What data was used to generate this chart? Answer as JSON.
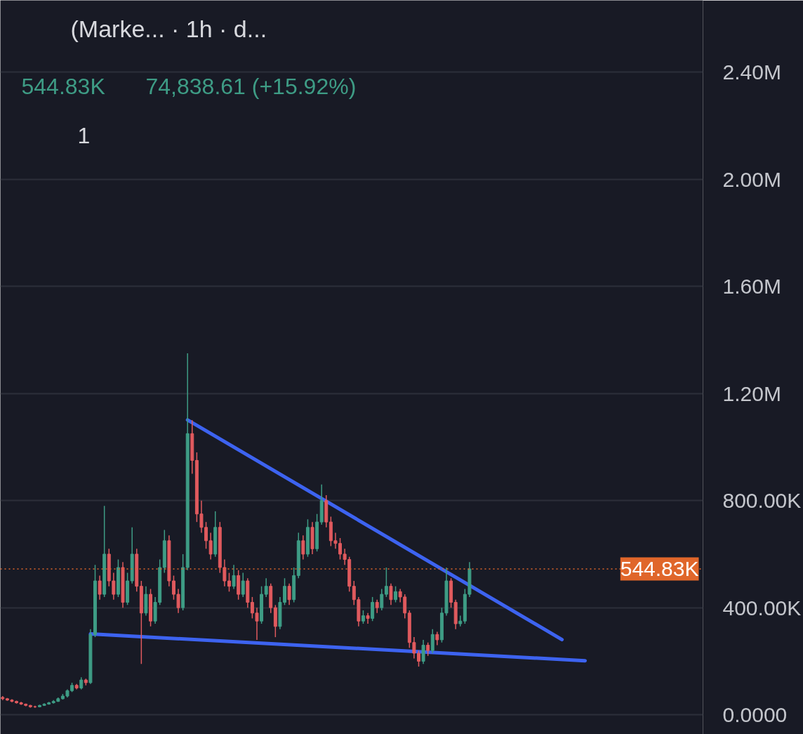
{
  "chart_data": {
    "type": "candlestick",
    "title": "(Marke... · 1h · d...",
    "annotations": [
      "544.83K",
      "74,838.61 (+15.92%)",
      "1"
    ],
    "categories": [
      null,
      null,
      null,
      null,
      null,
      null,
      null,
      null,
      null,
      null,
      null,
      null,
      null,
      null,
      null,
      null,
      null,
      null,
      null,
      null,
      null,
      null,
      null,
      null,
      null,
      null,
      null,
      null,
      null,
      null,
      null,
      null,
      null,
      null,
      null,
      null,
      null,
      null,
      null,
      null,
      null,
      null,
      null,
      null,
      null,
      null,
      null,
      null,
      null,
      null,
      null,
      null,
      null,
      null,
      null,
      null,
      null,
      null,
      null,
      null,
      null,
      null,
      null,
      null,
      null,
      null,
      null,
      null,
      null,
      null,
      null,
      null,
      null,
      null,
      null,
      null,
      null,
      null,
      null,
      null,
      null,
      null,
      null,
      null,
      null,
      null,
      null,
      null,
      null,
      null,
      null,
      null,
      null,
      null,
      null,
      null,
      null,
      null,
      null,
      null,
      null,
      null,
      null,
      null,
      null,
      null,
      null,
      null,
      null,
      null,
      null,
      null,
      null,
      null,
      null,
      null,
      null,
      null,
      null,
      null,
      null,
      null,
      null,
      null,
      null,
      null,
      null,
      null,
      null,
      null,
      null,
      null,
      null,
      null,
      null,
      null,
      null,
      null,
      null,
      null,
      null,
      null,
      null,
      null,
      null,
      null,
      null,
      null,
      null,
      null,
      null,
      null
    ],
    "ohlc": [
      [
        65000,
        70000,
        55000,
        60000
      ],
      [
        60000,
        63000,
        52000,
        55000
      ],
      [
        55000,
        58000,
        47000,
        50000
      ],
      [
        50000,
        53000,
        42000,
        45000
      ],
      [
        45000,
        48000,
        37000,
        40000
      ],
      [
        40000,
        42000,
        32000,
        35000
      ],
      [
        35000,
        37000,
        27000,
        30000
      ],
      [
        30000,
        34000,
        26000,
        30000
      ],
      [
        30000,
        38000,
        28000,
        35000
      ],
      [
        35000,
        43000,
        33000,
        40000
      ],
      [
        40000,
        48000,
        38000,
        45000
      ],
      [
        45000,
        55000,
        42000,
        50000
      ],
      [
        50000,
        65000,
        48000,
        60000
      ],
      [
        60000,
        78000,
        57000,
        70000
      ],
      [
        70000,
        95000,
        65000,
        90000
      ],
      [
        90000,
        120000,
        85000,
        110000
      ],
      [
        110000,
        115000,
        95000,
        100000
      ],
      [
        100000,
        140000,
        95000,
        130000
      ],
      [
        130000,
        135000,
        110000,
        120000
      ],
      [
        120000,
        320000,
        115000,
        300000
      ],
      [
        300000,
        560000,
        290000,
        500000
      ],
      [
        500000,
        520000,
        430000,
        450000
      ],
      [
        450000,
        780000,
        440000,
        600000
      ],
      [
        600000,
        620000,
        480000,
        500000
      ],
      [
        500000,
        530000,
        430000,
        450000
      ],
      [
        450000,
        580000,
        440000,
        550000
      ],
      [
        550000,
        570000,
        400000,
        420000
      ],
      [
        420000,
        530000,
        410000,
        500000
      ],
      [
        500000,
        700000,
        490000,
        600000
      ],
      [
        600000,
        620000,
        460000,
        480000
      ],
      [
        480000,
        500000,
        190000,
        380000
      ],
      [
        380000,
        480000,
        370000,
        450000
      ],
      [
        450000,
        470000,
        330000,
        350000
      ],
      [
        350000,
        440000,
        340000,
        420000
      ],
      [
        420000,
        580000,
        410000,
        550000
      ],
      [
        550000,
        690000,
        530000,
        650000
      ],
      [
        650000,
        670000,
        480000,
        500000
      ],
      [
        500000,
        520000,
        430000,
        450000
      ],
      [
        450000,
        470000,
        380000,
        400000
      ],
      [
        400000,
        600000,
        390000,
        550000
      ],
      [
        550000,
        1350000,
        540000,
        1050000
      ],
      [
        1050000,
        1100000,
        900000,
        950000
      ],
      [
        950000,
        980000,
        720000,
        750000
      ],
      [
        750000,
        800000,
        680000,
        700000
      ],
      [
        700000,
        720000,
        620000,
        650000
      ],
      [
        650000,
        680000,
        580000,
        600000
      ],
      [
        600000,
        760000,
        590000,
        700000
      ],
      [
        700000,
        720000,
        530000,
        550000
      ],
      [
        550000,
        580000,
        480000,
        500000
      ],
      [
        500000,
        530000,
        460000,
        480000
      ],
      [
        480000,
        560000,
        470000,
        520000
      ],
      [
        520000,
        540000,
        430000,
        450000
      ],
      [
        450000,
        530000,
        440000,
        500000
      ],
      [
        500000,
        510000,
        400000,
        420000
      ],
      [
        420000,
        440000,
        360000,
        380000
      ],
      [
        380000,
        400000,
        280000,
        350000
      ],
      [
        350000,
        480000,
        340000,
        450000
      ],
      [
        450000,
        510000,
        440000,
        480000
      ],
      [
        480000,
        490000,
        380000,
        400000
      ],
      [
        400000,
        410000,
        290000,
        330000
      ],
      [
        330000,
        440000,
        320000,
        420000
      ],
      [
        420000,
        510000,
        410000,
        480000
      ],
      [
        480000,
        490000,
        410000,
        430000
      ],
      [
        430000,
        550000,
        420000,
        520000
      ],
      [
        520000,
        680000,
        510000,
        650000
      ],
      [
        650000,
        670000,
        580000,
        600000
      ],
      [
        600000,
        730000,
        590000,
        700000
      ],
      [
        700000,
        720000,
        600000,
        620000
      ],
      [
        620000,
        750000,
        610000,
        720000
      ],
      [
        720000,
        860000,
        710000,
        800000
      ],
      [
        800000,
        820000,
        700000,
        720000
      ],
      [
        720000,
        740000,
        630000,
        650000
      ],
      [
        650000,
        680000,
        620000,
        640000
      ],
      [
        640000,
        660000,
        580000,
        600000
      ],
      [
        600000,
        620000,
        560000,
        580000
      ],
      [
        580000,
        590000,
        460000,
        480000
      ],
      [
        480000,
        500000,
        410000,
        430000
      ],
      [
        430000,
        440000,
        330000,
        350000
      ],
      [
        350000,
        390000,
        340000,
        370000
      ],
      [
        370000,
        380000,
        340000,
        360000
      ],
      [
        360000,
        440000,
        350000,
        420000
      ],
      [
        420000,
        430000,
        380000,
        400000
      ],
      [
        400000,
        470000,
        390000,
        450000
      ],
      [
        450000,
        550000,
        440000,
        480000
      ],
      [
        480000,
        490000,
        410000,
        430000
      ],
      [
        430000,
        480000,
        420000,
        460000
      ],
      [
        460000,
        470000,
        420000,
        440000
      ],
      [
        440000,
        450000,
        360000,
        380000
      ],
      [
        380000,
        390000,
        250000,
        270000
      ],
      [
        270000,
        290000,
        210000,
        230000
      ],
      [
        230000,
        240000,
        180000,
        200000
      ],
      [
        200000,
        280000,
        190000,
        260000
      ],
      [
        260000,
        270000,
        220000,
        240000
      ],
      [
        240000,
        320000,
        230000,
        300000
      ],
      [
        300000,
        310000,
        260000,
        280000
      ],
      [
        280000,
        400000,
        270000,
        380000
      ],
      [
        380000,
        550000,
        370000,
        500000
      ],
      [
        500000,
        510000,
        400000,
        420000
      ],
      [
        420000,
        430000,
        320000,
        340000
      ],
      [
        340000,
        370000,
        330000,
        350000
      ],
      [
        350000,
        470000,
        340000,
        450000
      ],
      [
        450000,
        570000,
        440000,
        544830
      ],
      null,
      null,
      null,
      null,
      null,
      null,
      null,
      null,
      null,
      null,
      null,
      null,
      null,
      null,
      null,
      null,
      null,
      null,
      null,
      null,
      null,
      null,
      null,
      null,
      null,
      null,
      null,
      null,
      null,
      null,
      null,
      null,
      null,
      null,
      null,
      null,
      null,
      null,
      null,
      null,
      null,
      null,
      null,
      null,
      null,
      null,
      null,
      null,
      null,
      null
    ],
    "colors": [
      "#e05a5e",
      "#e05a5e",
      "#e05a5e",
      "#e05a5e",
      "#e05a5e",
      "#e05a5e",
      "#e05a5e",
      "#e05a5e",
      "#3e9c85",
      "#3e9c85",
      "#3e9c85",
      "#3e9c85",
      "#3e9c85",
      "#3e9c85",
      "#3e9c85",
      "#3e9c85",
      "#e05a5e",
      "#3e9c85",
      "#e05a5e",
      "#3e9c85",
      "#3e9c85",
      "#e05a5e",
      "#3e9c85",
      "#e05a5e",
      "#e05a5e",
      "#3e9c85",
      "#e05a5e",
      "#3e9c85",
      "#3e9c85",
      "#e05a5e",
      "#e05a5e",
      "#3e9c85",
      "#e05a5e",
      "#3e9c85",
      "#3e9c85",
      "#3e9c85",
      "#e05a5e",
      "#e05a5e",
      "#e05a5e",
      "#3e9c85",
      "#3e9c85",
      "#e05a5e",
      "#e05a5e",
      "#e05a5e",
      "#e05a5e",
      "#e05a5e",
      "#3e9c85",
      "#e05a5e",
      "#e05a5e",
      "#e05a5e",
      "#3e9c85",
      "#e05a5e",
      "#3e9c85",
      "#e05a5e",
      "#e05a5e",
      "#e05a5e",
      "#3e9c85",
      "#3e9c85",
      "#e05a5e",
      "#e05a5e",
      "#3e9c85",
      "#3e9c85",
      "#e05a5e",
      "#3e9c85",
      "#3e9c85",
      "#e05a5e",
      "#3e9c85",
      "#e05a5e",
      "#3e9c85",
      "#3e9c85",
      "#e05a5e",
      "#e05a5e",
      "#e05a5e",
      "#e05a5e",
      "#e05a5e",
      "#e05a5e",
      "#e05a5e",
      "#e05a5e",
      "#3e9c85",
      "#e05a5e",
      "#3e9c85",
      "#e05a5e",
      "#3e9c85",
      "#3e9c85",
      "#e05a5e",
      "#3e9c85",
      "#e05a5e",
      "#e05a5e",
      "#e05a5e",
      "#e05a5e",
      "#e05a5e",
      "#3e9c85",
      "#e05a5e",
      "#3e9c85",
      "#e05a5e",
      "#3e9c85",
      "#3e9c85",
      "#e05a5e",
      "#e05a5e",
      "#3e9c85",
      "#3e9c85",
      "#3e9c85",
      null,
      null,
      null,
      null,
      null,
      null,
      null,
      null,
      null,
      null,
      null,
      null,
      null,
      null,
      null,
      null,
      null,
      null,
      null,
      null,
      null,
      null,
      null,
      null,
      null,
      null,
      null,
      null,
      null,
      null,
      null,
      null,
      null,
      null,
      null,
      null,
      null,
      null,
      null,
      null,
      null,
      null,
      null,
      null,
      null,
      null,
      null,
      null,
      null,
      null
    ],
    "series": [
      {
        "type": "line",
        "color": "#3d63f0",
        "values": [
          null,
          null,
          null,
          null,
          null,
          null,
          null,
          null,
          null,
          null,
          null,
          null,
          null,
          null,
          null,
          null,
          null,
          null,
          null,
          null,
          null,
          null,
          null,
          null,
          null,
          null,
          null,
          null,
          null,
          null,
          null,
          null,
          null,
          null,
          null,
          null,
          null,
          null,
          null,
          null,
          1101000,
          null,
          null,
          null,
          null,
          null,
          null,
          null,
          null,
          null,
          null,
          null,
          null,
          null,
          null,
          null,
          null,
          null,
          null,
          null,
          null,
          null,
          null,
          null,
          null,
          null,
          null,
          null,
          null,
          null,
          null,
          null,
          null,
          null,
          null,
          null,
          null,
          null,
          null,
          null,
          null,
          null,
          null,
          null,
          null,
          null,
          null,
          null,
          null,
          null,
          null,
          null,
          null,
          null,
          null,
          null,
          null,
          null,
          null,
          null,
          null,
          null,
          null,
          null,
          null,
          null,
          null,
          null,
          null,
          null,
          null,
          null,
          null,
          null,
          null,
          null,
          null,
          null,
          null,
          null,
          null,
          281000,
          null,
          null,
          null,
          null,
          null,
          null,
          null,
          null,
          null,
          null,
          null,
          null,
          null,
          null,
          null,
          null,
          null,
          null,
          null,
          null,
          null,
          null,
          null,
          null,
          null,
          null,
          null,
          null,
          null,
          null
        ]
      },
      {
        "type": "line",
        "color": "#3d63f0",
        "values": [
          null,
          null,
          null,
          null,
          null,
          null,
          null,
          null,
          null,
          null,
          null,
          null,
          null,
          null,
          null,
          null,
          null,
          null,
          null,
          302000,
          null,
          null,
          null,
          null,
          null,
          null,
          null,
          null,
          null,
          null,
          null,
          null,
          null,
          null,
          null,
          null,
          null,
          null,
          null,
          null,
          null,
          null,
          null,
          null,
          null,
          null,
          null,
          null,
          null,
          null,
          null,
          null,
          null,
          null,
          null,
          null,
          null,
          null,
          null,
          null,
          null,
          null,
          null,
          null,
          null,
          null,
          null,
          null,
          null,
          null,
          null,
          null,
          null,
          null,
          null,
          null,
          null,
          null,
          null,
          null,
          null,
          null,
          null,
          null,
          null,
          null,
          null,
          null,
          null,
          null,
          null,
          null,
          null,
          null,
          null,
          null,
          null,
          null,
          null,
          null,
          null,
          null,
          null,
          null,
          null,
          null,
          null,
          null,
          null,
          null,
          null,
          null,
          null,
          null,
          null,
          null,
          null,
          null,
          null,
          null,
          null,
          null,
          null,
          null,
          null,
          null,
          202000,
          null,
          null,
          null,
          null,
          null,
          null,
          null,
          null,
          null,
          null,
          null,
          null,
          null,
          null,
          null,
          null,
          null,
          null,
          null,
          null,
          null,
          null,
          null,
          null,
          null
        ]
      }
    ],
    "ref_lines": [
      {
        "axis": "y",
        "value": 544830,
        "label": "544.83K",
        "color": "#e0662a",
        "line_style": "dotted"
      }
    ],
    "ylim": [
      -73000,
      2668000
    ],
    "yticks": [
      {
        "value": 0,
        "label": "0.0000"
      },
      {
        "value": 400000,
        "label": "400.00K"
      },
      {
        "value": 800000,
        "label": "800.00K"
      },
      {
        "value": 1200000,
        "label": "1.20M"
      },
      {
        "value": 1600000,
        "label": "1.60M"
      },
      {
        "value": 2000000,
        "label": "2.00M"
      },
      {
        "value": 2400000,
        "label": "2.40M"
      }
    ],
    "grid": true
  }
}
